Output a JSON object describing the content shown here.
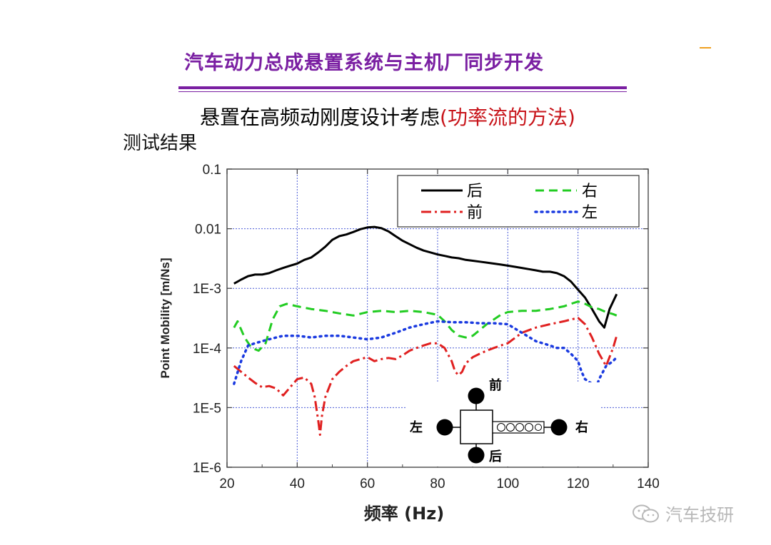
{
  "header": {
    "title": "汽车动力总成悬置系统与主机厂同步开发",
    "subtitle_main": "悬置在高频动刚度设计考虑",
    "subtitle_accent": "(功率流的方法)",
    "section_label": "测试结果"
  },
  "watermark": {
    "text": "汽车技研",
    "icon": "wechat-icon"
  },
  "colors": {
    "title": "#7a1fa2",
    "accent": "#c8141a"
  },
  "chart_data": {
    "type": "line",
    "xlabel": "频率 (Hz)",
    "ylabel": "Point Mobility [m/Ns]",
    "xlim": [
      20,
      140
    ],
    "ylim": [
      1e-06,
      0.1
    ],
    "yscale": "log",
    "x_ticks": [
      20,
      40,
      60,
      80,
      100,
      120,
      140
    ],
    "x_tick_labels": [
      "20",
      "40",
      "60",
      "80",
      "100",
      "120",
      "140"
    ],
    "y_ticks": [
      1e-06,
      1e-05,
      0.0001,
      0.001,
      0.01,
      0.1
    ],
    "y_tick_labels": [
      "1E-6",
      "1E-5",
      "1E-4",
      "1E-3",
      "0.01",
      "0.1"
    ],
    "grid": true,
    "legend_position": "top-right",
    "series": [
      {
        "name": "后",
        "color": "#000000",
        "style": "solid",
        "x": [
          22,
          24,
          26,
          28,
          30,
          32,
          34,
          36,
          38,
          40,
          42,
          44,
          46,
          48,
          50,
          52,
          54,
          56,
          58,
          60,
          62,
          64,
          66,
          68,
          70,
          72,
          74,
          76,
          78,
          80,
          82,
          84,
          86,
          88,
          90,
          92,
          94,
          96,
          98,
          100,
          102,
          104,
          106,
          108,
          110,
          112,
          114,
          116,
          118,
          120,
          122,
          124,
          126,
          127.5,
          129,
          131
        ],
        "y": [
          0.0012,
          0.0014,
          0.0016,
          0.0017,
          0.0017,
          0.0018,
          0.002,
          0.0022,
          0.0024,
          0.0026,
          0.003,
          0.0033,
          0.004,
          0.005,
          0.0065,
          0.0075,
          0.008,
          0.0088,
          0.0098,
          0.0105,
          0.0107,
          0.0102,
          0.009,
          0.0075,
          0.0063,
          0.0055,
          0.0048,
          0.0043,
          0.004,
          0.0037,
          0.0035,
          0.0033,
          0.0032,
          0.003,
          0.0029,
          0.0028,
          0.0027,
          0.0026,
          0.0025,
          0.0024,
          0.0023,
          0.0022,
          0.0021,
          0.002,
          0.0019,
          0.0019,
          0.0018,
          0.0016,
          0.0013,
          0.00095,
          0.0007,
          0.00045,
          0.00028,
          0.00022,
          0.00045,
          0.0008
        ]
      },
      {
        "name": "右",
        "color": "#22cc22",
        "style": "dashed",
        "x": [
          22,
          23,
          25,
          27,
          29,
          31,
          33,
          35,
          37,
          40,
          44,
          48,
          52,
          56,
          60,
          64,
          68,
          72,
          76,
          80,
          82,
          84,
          86,
          88,
          90,
          92,
          94,
          96,
          98,
          100,
          104,
          108,
          112,
          116,
          118,
          120,
          122,
          124,
          126,
          128,
          130,
          131
        ],
        "y": [
          0.00022,
          0.00028,
          0.00015,
          0.0001,
          9e-05,
          0.00012,
          0.0003,
          0.0005,
          0.00055,
          0.0005,
          0.00045,
          0.00042,
          0.00038,
          0.00035,
          0.0004,
          0.00042,
          0.0004,
          0.00042,
          0.0004,
          0.00036,
          0.00028,
          0.0002,
          0.00016,
          0.00015,
          0.00016,
          0.0002,
          0.00025,
          0.0003,
          0.00036,
          0.0004,
          0.00042,
          0.00042,
          0.00045,
          0.0005,
          0.00055,
          0.0006,
          0.00055,
          0.00048,
          0.00045,
          0.0004,
          0.00037,
          0.00035
        ]
      },
      {
        "name": "前",
        "color": "#e02020",
        "style": "dashdot",
        "x": [
          22,
          24,
          26,
          28,
          30,
          32,
          34,
          36,
          38,
          40,
          42,
          44,
          45,
          46,
          46.5,
          47,
          48,
          50,
          52,
          54,
          56,
          58,
          60,
          62,
          64,
          66,
          68,
          70,
          72,
          74,
          76,
          78,
          80,
          82,
          84,
          85,
          86,
          87,
          88,
          90,
          92,
          94,
          96,
          98,
          100,
          104,
          108,
          112,
          116,
          118,
          120,
          122,
          124,
          126,
          128,
          130,
          131
        ],
        "y": [
          5e-05,
          4e-05,
          3.2e-05,
          2.6e-05,
          2.2e-05,
          2.3e-05,
          2.1e-05,
          1.6e-05,
          2.2e-05,
          3e-05,
          3.2e-05,
          2.5e-05,
          1.5e-05,
          6e-06,
          3.5e-06,
          7e-06,
          1.5e-05,
          3e-05,
          4e-05,
          5e-05,
          6e-05,
          6.5e-05,
          7e-05,
          6e-05,
          6.5e-05,
          6.8e-05,
          6.5e-05,
          7.5e-05,
          9e-05,
          0.0001,
          0.00011,
          0.00012,
          0.00012,
          0.0001,
          6e-05,
          4e-05,
          3.5e-05,
          4e-05,
          5.5e-05,
          7e-05,
          8e-05,
          9e-05,
          0.0001,
          0.00011,
          0.00012,
          0.00018,
          0.00022,
          0.00025,
          0.00028,
          0.0003,
          0.00032,
          0.00025,
          0.00015,
          8e-05,
          5e-05,
          0.0001,
          0.00016
        ]
      },
      {
        "name": "左",
        "color": "#1a3ae0",
        "style": "dotted",
        "x": [
          22,
          24,
          26,
          28,
          30,
          32,
          34,
          36,
          38,
          40,
          44,
          48,
          52,
          56,
          60,
          64,
          68,
          72,
          76,
          80,
          84,
          88,
          92,
          96,
          100,
          104,
          108,
          112,
          114,
          116,
          118,
          120,
          121,
          122,
          124,
          125,
          126,
          128,
          130,
          131
        ],
        "y": [
          2.5e-05,
          6e-05,
          0.00011,
          0.00012,
          0.00013,
          0.00014,
          0.00015,
          0.00016,
          0.00016,
          0.00016,
          0.00015,
          0.00016,
          0.00016,
          0.00015,
          0.00014,
          0.00015,
          0.00018,
          0.00022,
          0.00025,
          0.00028,
          0.00027,
          0.00027,
          0.00026,
          0.00026,
          0.00025,
          0.00018,
          0.00013,
          0.00011,
          0.0001,
          0.0001,
          8e-05,
          6e-05,
          4e-05,
          3e-05,
          2.5e-05,
          2e-05,
          3e-05,
          5e-05,
          6e-05,
          7e-05
        ]
      }
    ],
    "inset": {
      "labels": {
        "front": "前",
        "rear": "后",
        "left": "左",
        "right": "右"
      }
    }
  }
}
